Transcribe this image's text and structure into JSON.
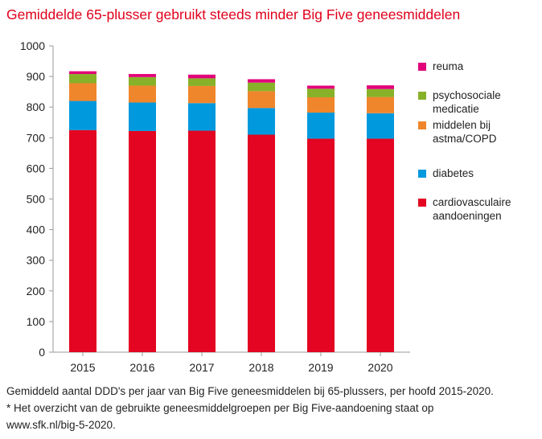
{
  "title": "Gemiddelde 65-plusser gebruikt steeds minder Big Five geneesmiddelen",
  "footnote": {
    "line1": "Gemiddeld aantal DDD's per jaar van Big Five geneesmiddelen bij 65-plussers, per hoofd 2015-2020.",
    "line2": "* Het overzicht van de gebruikte geneesmiddelgroepen per Big Five-aandoening staat op",
    "line3": "www.sfk.nl/big-5-2020."
  },
  "chart_data": {
    "type": "bar",
    "stacked": true,
    "categories": [
      "2015",
      "2016",
      "2017",
      "2018",
      "2019",
      "2020"
    ],
    "ylim": [
      0,
      1000
    ],
    "yticks": [
      "0",
      "100",
      "200",
      "300",
      "400",
      "500",
      "600",
      "700",
      "800",
      "900",
      "1000"
    ],
    "grid": false,
    "legend_position": "right",
    "series": [
      {
        "name": "cardiovasculaire aandoeningen",
        "color": "#e30521",
        "values": [
          725,
          722,
          723,
          710,
          697,
          697
        ]
      },
      {
        "name": "diabetes",
        "color": "#0099dd",
        "values": [
          95,
          93,
          90,
          87,
          85,
          83
        ]
      },
      {
        "name": "middelen bij astma/COPD",
        "color": "#f0862b",
        "values": [
          58,
          55,
          56,
          55,
          50,
          53
        ]
      },
      {
        "name": "psychosociale medicatie",
        "color": "#88b12a",
        "values": [
          30,
          28,
          25,
          28,
          28,
          26
        ]
      },
      {
        "name": "reuma",
        "color": "#e2007a",
        "values": [
          9,
          10,
          12,
          11,
          10,
          12
        ]
      }
    ]
  },
  "legend_order": [
    4,
    3,
    2,
    1,
    0
  ]
}
